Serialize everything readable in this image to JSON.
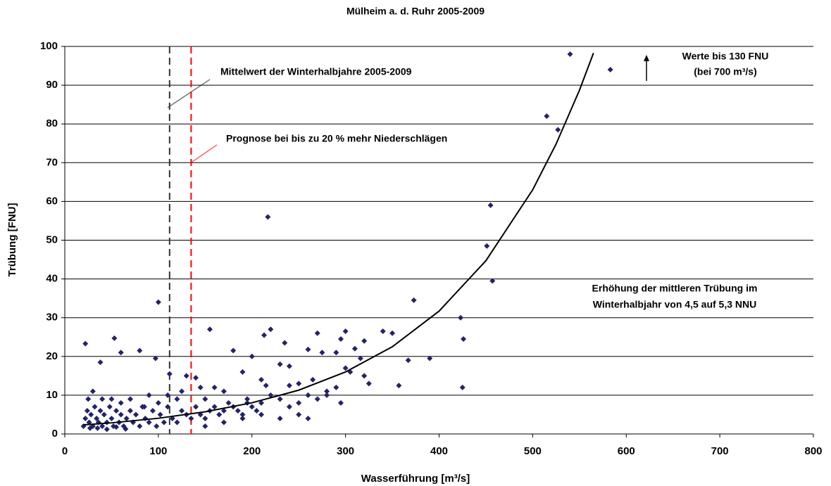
{
  "chart_data": {
    "type": "scatter",
    "title": "Mülheim a. d. Ruhr 2005-2009",
    "x_label": "Wasserführung [m³/s]",
    "y_label": "Trübung [FNU]",
    "xlim": [
      0,
      800
    ],
    "xticks": [
      0,
      100,
      200,
      300,
      400,
      500,
      600,
      700,
      800
    ],
    "ylim": [
      0,
      100
    ],
    "yticks": [
      0,
      10,
      20,
      30,
      40,
      50,
      60,
      70,
      80,
      90,
      100
    ],
    "grid": true,
    "series": [
      {
        "color": "#23236b",
        "x": [
          540,
          583,
          515,
          527,
          455,
          451,
          457,
          217,
          100,
          373,
          423,
          426,
          425,
          390,
          367,
          357,
          350,
          340,
          300,
          295,
          270,
          220,
          213,
          155,
          22,
          53,
          80,
          60,
          38,
          97,
          112,
          130,
          140,
          235,
          230,
          240,
          260,
          275,
          290,
          310,
          320,
          316,
          300,
          305,
          325,
          320,
          295,
          280,
          265,
          250,
          200,
          190,
          180,
          210,
          215,
          240,
          195,
          170,
          160,
          145,
          150,
          125,
          120,
          110,
          100,
          90,
          85,
          70,
          60,
          50,
          40,
          30,
          25,
          20,
          22,
          24,
          26,
          28,
          30,
          32,
          34,
          36,
          38,
          40,
          42,
          45,
          48,
          50,
          52,
          55,
          58,
          60,
          63,
          66,
          70,
          73,
          76,
          80,
          83,
          86,
          90,
          94,
          98,
          102,
          106,
          110,
          115,
          120,
          125,
          130,
          135,
          140,
          145,
          150,
          155,
          160,
          165,
          170,
          175,
          180,
          185,
          190,
          195,
          200,
          205,
          210,
          220,
          230,
          240,
          250,
          260,
          270,
          280,
          290,
          150,
          170,
          190,
          210,
          230,
          250,
          260,
          27,
          35,
          45,
          55,
          65
        ],
        "values": [
          98,
          94,
          82,
          78.5,
          59,
          48.5,
          39.5,
          56,
          34,
          34.5,
          30,
          24.5,
          12,
          19.5,
          19,
          12.5,
          26,
          26.5,
          26.5,
          24.5,
          26,
          27,
          25.5,
          27,
          23.3,
          24.7,
          21.5,
          21,
          18.5,
          19.5,
          15.5,
          15,
          14.5,
          23.5,
          18,
          17.5,
          21.8,
          21,
          21,
          22,
          24,
          19.5,
          17,
          16,
          13,
          15,
          8,
          10,
          14,
          13,
          20,
          16,
          21.5,
          14,
          12.5,
          12.5,
          8,
          11,
          12,
          12,
          9,
          11,
          9,
          10,
          8,
          10,
          7,
          9,
          8,
          9,
          9,
          11,
          9,
          2,
          4,
          6,
          3,
          5,
          2,
          7,
          4,
          3,
          6,
          2,
          5,
          3,
          7,
          4,
          2,
          6,
          3,
          5,
          2,
          4,
          6,
          3,
          5,
          2,
          7,
          4,
          3,
          6,
          2,
          5,
          3,
          7,
          4,
          3,
          6,
          5,
          4,
          7,
          5,
          4,
          6,
          7,
          5,
          6,
          8,
          7,
          6,
          5,
          9,
          7,
          6,
          8,
          10,
          9,
          7,
          8,
          10,
          9,
          11,
          12,
          2,
          3,
          4,
          5,
          4,
          5,
          4,
          1.5,
          1.5,
          1.2,
          1.8,
          1.3
        ]
      },
      {
        "color": "#000000",
        "x": [
          20,
          50,
          100,
          150,
          200,
          250,
          300,
          350,
          400,
          450,
          500,
          525,
          550,
          565
        ],
        "values": [
          2.35,
          2.87,
          4.05,
          5.71,
          8.04,
          11.3,
          16.0,
          22.5,
          31.7,
          44.7,
          63.0,
          74.8,
          88.7,
          98.3
        ]
      }
    ],
    "reference_lines": [
      {
        "x": 112,
        "color": "#333333"
      },
      {
        "x": 135,
        "color": "#ff0000"
      }
    ],
    "annotations": [
      "Mittelwert der Winterhalbjahre 2005-2009",
      "Prognose bei bis zu 20 % mehr Niederschlägen",
      "Werte bis 130 FNU",
      "(bei 700 m³/s)",
      "Erhöhung der mittleren Trübung im",
      "Winterhalbjahr von 4,5 auf 5,3 NNU"
    ]
  }
}
